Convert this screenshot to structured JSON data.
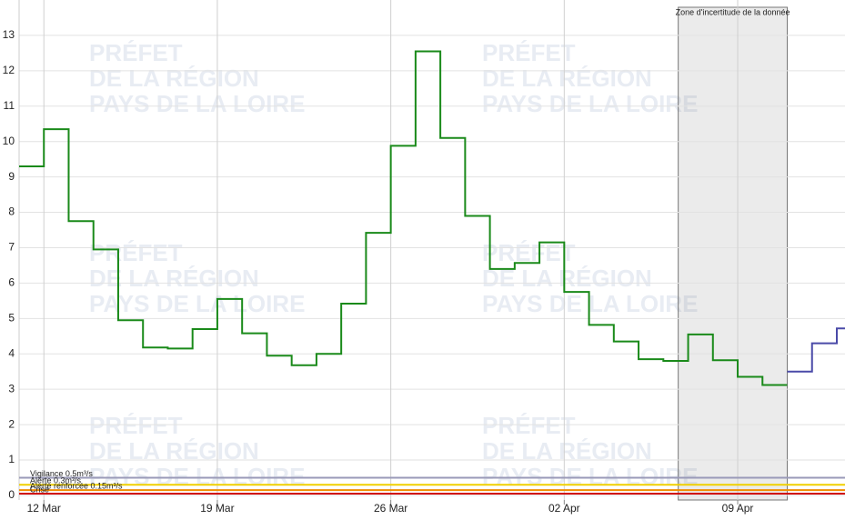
{
  "chart_data": {
    "type": "step",
    "watermark": [
      "PRÉFET",
      "DE LA RÉGION",
      "PAYS DE LA LOIRE"
    ],
    "annotation": "Zone d'incertitude de la donnée",
    "uncertainty_zone": [
      "06 Apr",
      "11 Apr"
    ],
    "xlim": [
      "11 Mar",
      "13 Apr"
    ],
    "xticks": [
      "12 Mar",
      "19 Mar",
      "26 Mar",
      "02 Apr",
      "09 Apr"
    ],
    "ylim": [
      -0.13,
      14
    ],
    "yticks": [
      0,
      1,
      2,
      3,
      4,
      5,
      6,
      7,
      8,
      9,
      10,
      11,
      12,
      13
    ],
    "grid": true,
    "series": [
      {
        "color": "#1a8a1a",
        "x": [
          "11 Mar",
          "12 Mar",
          "13 Mar",
          "14 Mar",
          "15 Mar",
          "16 Mar",
          "17 Mar",
          "18 Mar",
          "19 Mar",
          "20 Mar",
          "21 Mar",
          "22 Mar",
          "23 Mar",
          "24 Mar",
          "25 Mar",
          "26 Mar",
          "27 Mar",
          "28 Mar",
          "29 Mar",
          "30 Mar",
          "31 Mar",
          "01 Apr",
          "02 Apr",
          "03 Apr",
          "04 Apr",
          "05 Apr",
          "06 Apr",
          "07 Apr",
          "08 Apr",
          "09 Apr",
          "10 Apr"
        ],
        "values": [
          9.3,
          10.35,
          7.75,
          6.95,
          4.95,
          4.18,
          4.15,
          4.7,
          5.55,
          4.58,
          3.95,
          3.68,
          4.0,
          5.42,
          7.42,
          9.88,
          12.55,
          10.1,
          7.9,
          6.4,
          6.57,
          7.15,
          5.75,
          4.82,
          4.35,
          3.85,
          3.8,
          4.55,
          3.82,
          3.35,
          3.12
        ]
      },
      {
        "color": "#4a4aa8",
        "x": [
          "11 Apr",
          "12 Apr",
          "13 Apr"
        ],
        "values": [
          3.5,
          4.3,
          4.72
        ]
      }
    ],
    "thresholds": [
      {
        "name": "Vigilance 0.5m³/s",
        "value": 0.5,
        "color": "#9a9ab8"
      },
      {
        "name": "Alerte 0.3m³/s",
        "value": 0.3,
        "color": "#f0d000"
      },
      {
        "name": "Alerte renforcée 0.15m³/s",
        "value": 0.15,
        "color": "#f08c00"
      },
      {
        "name": "Crise",
        "value": 0.05,
        "color": "#d00000"
      }
    ]
  }
}
